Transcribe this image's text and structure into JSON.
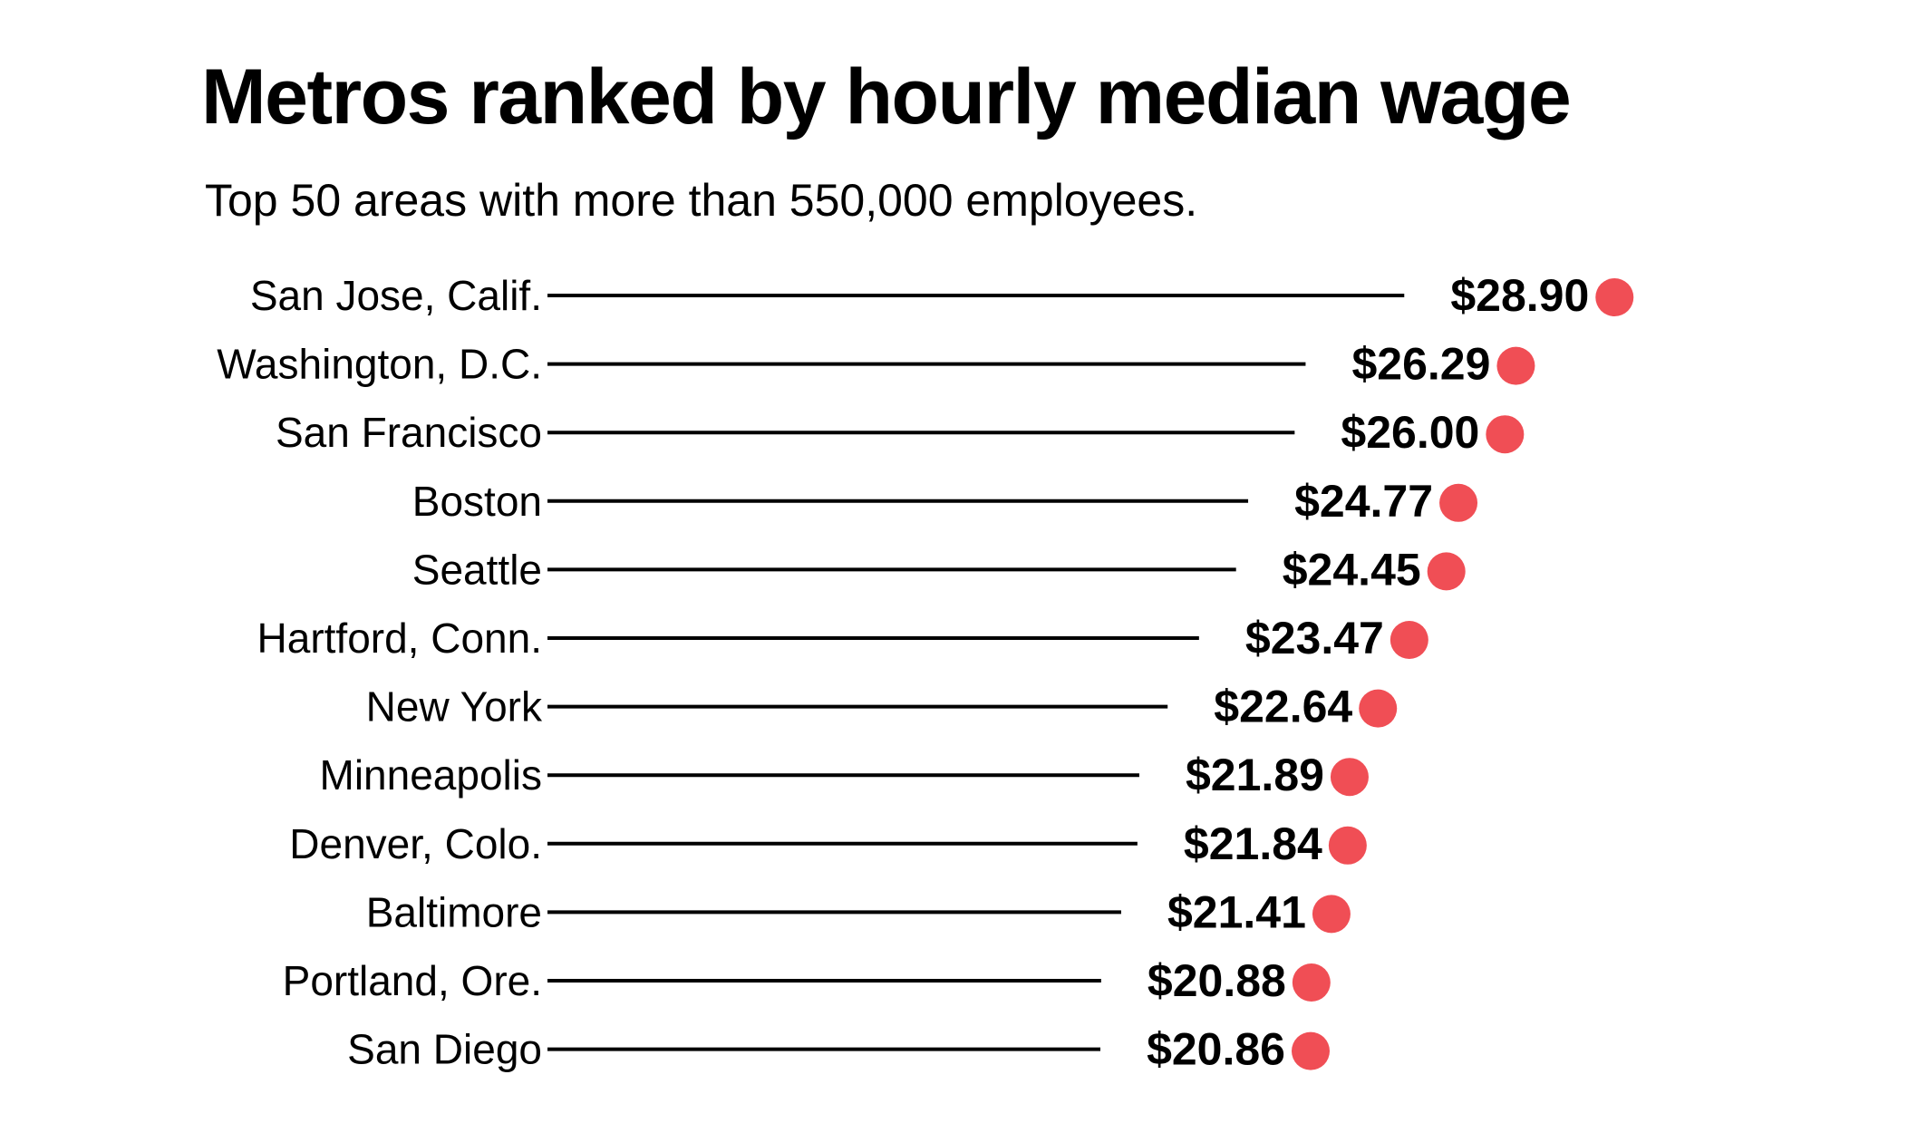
{
  "chart_data": {
    "type": "dot-lollipop",
    "title": "Metros ranked by hourly median wage",
    "subtitle": "Top 50 areas with more than 550,000 employees.",
    "categories": [
      "San Jose, Calif.",
      "Washington, D.C.",
      "San Francisco",
      "Boston",
      "Seattle",
      "Hartford, Conn.",
      "New York",
      "Minneapolis",
      "Denver, Colo.",
      "Baltimore",
      "Portland, Ore.",
      "San Diego"
    ],
    "values": [
      28.9,
      26.29,
      26.0,
      24.77,
      24.45,
      23.47,
      22.64,
      21.89,
      21.84,
      21.41,
      20.88,
      20.86
    ],
    "value_labels": [
      "$28.90",
      "$26.29",
      "$26.00",
      "$24.77",
      "$24.45",
      "$23.47",
      "$22.64",
      "$21.89",
      "$21.84",
      "$21.41",
      "$20.88",
      "$20.86"
    ],
    "grid": false,
    "legend": "none",
    "colors": {
      "dot": "#f04e55",
      "line": "#000000"
    }
  }
}
